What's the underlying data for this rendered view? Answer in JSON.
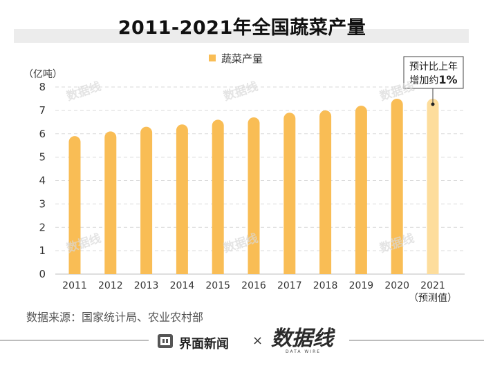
{
  "title": "2011-2021年全国蔬菜产量",
  "source": "数据来源：国家统计局、农业农村部",
  "footer": {
    "jiemian_label": "界面新闻",
    "times": "×",
    "datawire_label": "数据线",
    "datawire_en": "DATA WIRE"
  },
  "watermark": "数据线",
  "colors": {
    "bar": "#f9bd55",
    "bar_forecast": "#fddd9c",
    "grid": "#d9d9d9"
  },
  "chart_data": {
    "type": "bar",
    "title": "2011-2021年全国蔬菜产量",
    "ylabel": "（亿吨）",
    "xlabel": "",
    "ylim": [
      0,
      8
    ],
    "yticks": [
      0,
      1,
      2,
      3,
      4,
      5,
      6,
      7,
      8
    ],
    "grid": true,
    "legend": {
      "label": "蔬菜产量",
      "position": "top-center"
    },
    "categories": [
      "2011",
      "2012",
      "2013",
      "2014",
      "2015",
      "2016",
      "2017",
      "2018",
      "2019",
      "2020",
      "2021"
    ],
    "forecast_note": "（预测值）",
    "values": [
      5.9,
      6.1,
      6.3,
      6.4,
      6.6,
      6.7,
      6.9,
      7.0,
      7.2,
      7.5,
      7.5
    ],
    "forecast": [
      false,
      false,
      false,
      false,
      false,
      false,
      false,
      false,
      false,
      false,
      true
    ],
    "annotation": {
      "line1": "预计比上年",
      "line2_prefix": "增加约",
      "line2_value": "1%",
      "category": "2021"
    }
  }
}
